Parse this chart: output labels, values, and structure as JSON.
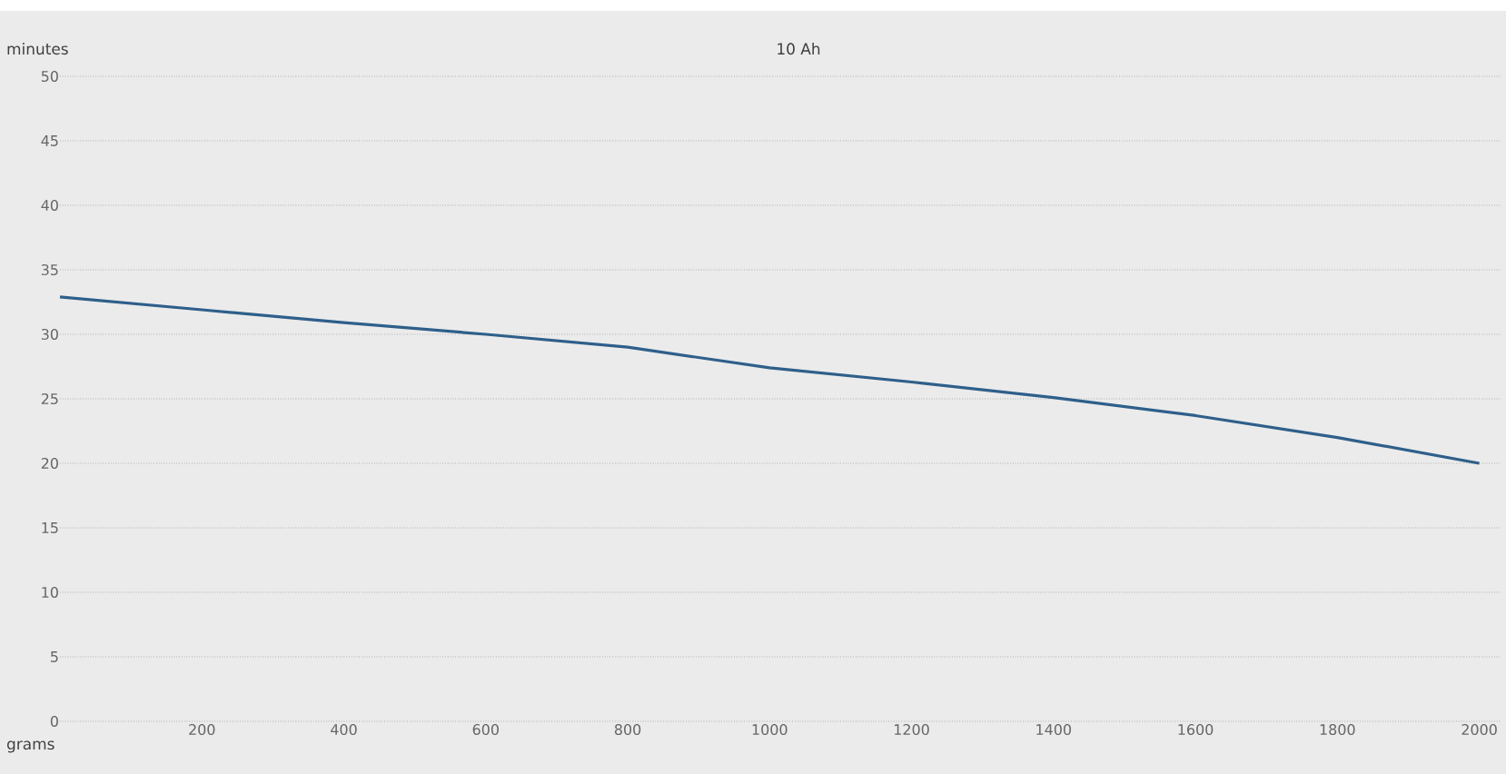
{
  "chart_data": {
    "type": "line",
    "title": "10 Ah",
    "xlabel": "grams",
    "ylabel": "minutes",
    "x": [
      0,
      200,
      400,
      600,
      800,
      1000,
      1200,
      1400,
      1600,
      1800,
      2000
    ],
    "series": [
      {
        "color": "#2e5f8a",
        "values": [
          32.9,
          31.9,
          30.9,
          30.0,
          29.0,
          27.4,
          26.3,
          25.1,
          23.7,
          22.0,
          20.0
        ]
      }
    ],
    "xlim": [
      0,
      2030
    ],
    "ylim": [
      0,
      50
    ],
    "xticks": [
      200,
      400,
      600,
      800,
      1000,
      1200,
      1400,
      1600,
      1800,
      2000
    ],
    "yticks": [
      0,
      5,
      10,
      15,
      20,
      25,
      30,
      35,
      40,
      45,
      50
    ],
    "grid": "y",
    "marker": "none",
    "line_style": "solid"
  }
}
